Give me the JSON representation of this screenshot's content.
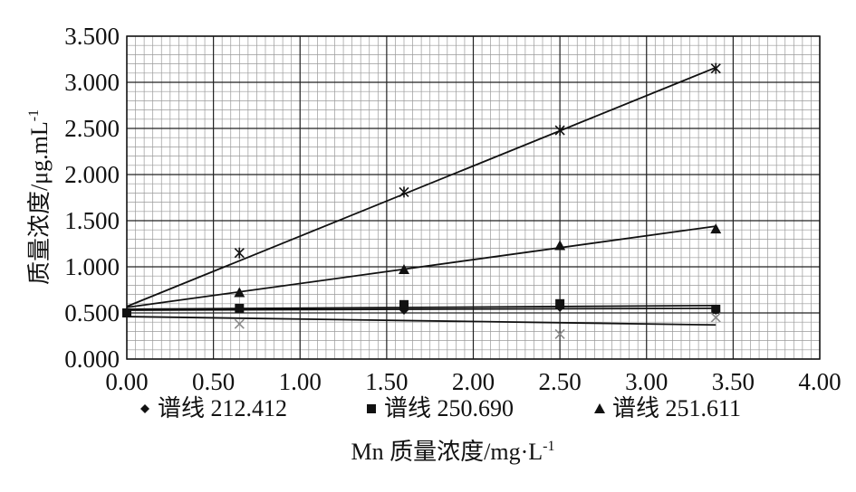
{
  "chart_data": {
    "type": "scatter",
    "xlabel": "Mn 质量浓度/mg·L",
    "xlabel_sup": "-1",
    "ylabel": "质量浓度/μg.mL",
    "ylabel_sup": "-1",
    "xlim": [
      0,
      4.0
    ],
    "ylim": [
      0,
      3.5
    ],
    "x_ticks": [
      "0.00",
      "0.50",
      "1.00",
      "1.50",
      "2.00",
      "2.50",
      "3.00",
      "3.50",
      "4.00"
    ],
    "y_ticks": [
      "0.000",
      "0.500",
      "1.000",
      "1.500",
      "2.000",
      "2.500",
      "3.000",
      "3.500"
    ],
    "grid": true,
    "legend_position": "bottom",
    "series": [
      {
        "name": "谱线 212.412",
        "marker": "diamond",
        "color": "#111111",
        "x": [
          0.0,
          0.65,
          1.6,
          2.5,
          3.4
        ],
        "y": [
          0.51,
          0.55,
          0.53,
          0.56,
          0.53
        ],
        "trend": [
          [
            0.0,
            0.53
          ],
          [
            3.4,
            0.55
          ]
        ]
      },
      {
        "name": "谱线 250.690",
        "marker": "square",
        "color": "#111111",
        "x": [
          0.0,
          0.65,
          1.6,
          2.5,
          3.4
        ],
        "y": [
          0.5,
          0.55,
          0.59,
          0.6,
          0.54
        ],
        "trend": [
          [
            0.0,
            0.54
          ],
          [
            3.4,
            0.58
          ]
        ]
      },
      {
        "name": "谱线 251.611",
        "marker": "triangle",
        "color": "#111111",
        "x": [
          0.65,
          1.6,
          2.5,
          3.4
        ],
        "y": [
          0.72,
          0.97,
          1.23,
          1.41
        ],
        "trend": [
          [
            0.0,
            0.56
          ],
          [
            3.4,
            1.44
          ]
        ]
      },
      {
        "marker": "star",
        "color": "#111111",
        "x": [
          0.65,
          1.6,
          2.5,
          3.4
        ],
        "y": [
          1.15,
          1.81,
          2.48,
          3.15
        ],
        "trend": [
          [
            0.0,
            0.57
          ],
          [
            3.4,
            3.16
          ]
        ]
      },
      {
        "marker": "x",
        "color": "#8a8a8a",
        "x": [
          0.65,
          2.5,
          3.4
        ],
        "y": [
          0.38,
          0.27,
          0.45
        ],
        "trend": [
          [
            0.0,
            0.46
          ],
          [
            3.4,
            0.37
          ]
        ]
      }
    ]
  }
}
